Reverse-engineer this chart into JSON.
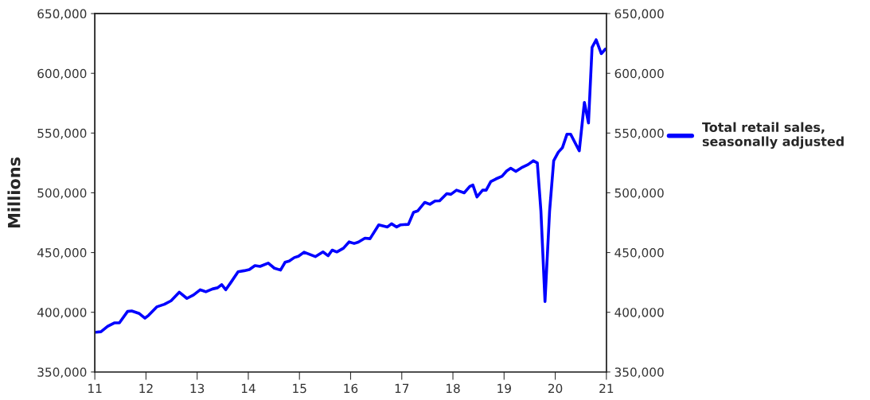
{
  "chart_data": {
    "type": "line",
    "ylabel": "Millions",
    "x": [
      2011.02,
      2011.12,
      2011.25,
      2011.38,
      2011.48,
      2011.64,
      2011.72,
      2011.87,
      2011.98,
      2012.05,
      2012.21,
      2012.36,
      2012.49,
      2012.65,
      2012.8,
      2012.93,
      2013.06,
      2013.17,
      2013.3,
      2013.4,
      2013.48,
      2013.56,
      2013.66,
      2013.8,
      2013.92,
      2014.02,
      2014.13,
      2014.23,
      2014.39,
      2014.51,
      2014.63,
      2014.72,
      2014.8,
      2014.9,
      2014.98,
      2015.09,
      2015.31,
      2015.46,
      2015.56,
      2015.64,
      2015.73,
      2015.86,
      2015.97,
      2016.07,
      2016.15,
      2016.28,
      2016.38,
      2016.55,
      2016.72,
      2016.8,
      2016.9,
      2016.98,
      2017.13,
      2017.23,
      2017.31,
      2017.45,
      2017.55,
      2017.65,
      2017.74,
      2017.88,
      2017.96,
      2018.07,
      2018.22,
      2018.33,
      2018.39,
      2018.47,
      2018.58,
      2018.65,
      2018.74,
      2018.84,
      2018.96,
      2019.05,
      2019.13,
      2019.23,
      2019.34,
      2019.47,
      2019.57,
      2019.65,
      2019.72,
      2019.8,
      2019.89,
      2019.97,
      2020.06,
      2020.14,
      2020.23,
      2020.3,
      2020.47,
      2020.57,
      2020.65,
      2020.72,
      2020.8,
      2020.9,
      2020.98
    ],
    "series": [
      {
        "name": "Total retail sales,\nseasonally adjusted",
        "color": "#0000ff",
        "values": [
          383300,
          383700,
          388200,
          391100,
          391100,
          400700,
          401100,
          398900,
          395100,
          397400,
          404500,
          406700,
          409600,
          416800,
          411600,
          414500,
          418800,
          417200,
          419500,
          420500,
          423200,
          418900,
          425000,
          433900,
          434800,
          435700,
          439100,
          438400,
          441100,
          436900,
          435300,
          441900,
          442900,
          445800,
          446900,
          450300,
          446600,
          450500,
          447300,
          452000,
          450500,
          453600,
          458900,
          457600,
          458700,
          462000,
          461600,
          473200,
          471400,
          474100,
          471400,
          473200,
          473600,
          483700,
          484800,
          492000,
          490400,
          493100,
          493300,
          499300,
          498700,
          502200,
          500000,
          505400,
          506500,
          496500,
          502200,
          502200,
          509400,
          511600,
          513900,
          518300,
          520600,
          517900,
          521000,
          523700,
          526800,
          525000,
          484800,
          409000,
          484800,
          526800,
          534000,
          537700,
          549100,
          549100,
          535100,
          575700,
          558500,
          621700,
          628100,
          616500,
          620300
        ]
      }
    ],
    "xlim": [
      2011,
      2021
    ],
    "xticks": [
      {
        "value": 2011,
        "label": "11"
      },
      {
        "value": 2012,
        "label": "12"
      },
      {
        "value": 2013,
        "label": "13"
      },
      {
        "value": 2014,
        "label": "14"
      },
      {
        "value": 2015,
        "label": "15"
      },
      {
        "value": 2016,
        "label": "16"
      },
      {
        "value": 2017,
        "label": "17"
      },
      {
        "value": 2018,
        "label": "18"
      },
      {
        "value": 2019,
        "label": "19"
      },
      {
        "value": 2020,
        "label": "20"
      },
      {
        "value": 2021,
        "label": "21"
      }
    ],
    "ylim": [
      350000,
      650000
    ],
    "yticks": [
      {
        "value": 350000,
        "label": "350,000"
      },
      {
        "value": 400000,
        "label": "400,000"
      },
      {
        "value": 450000,
        "label": "450,000"
      },
      {
        "value": 500000,
        "label": "500,000"
      },
      {
        "value": 550000,
        "label": "550,000"
      },
      {
        "value": 600000,
        "label": "600,000"
      },
      {
        "value": 650000,
        "label": "650,000"
      }
    ],
    "y2lim": [
      350000,
      650000
    ],
    "y2ticks": [
      {
        "value": 350000,
        "label": "350,000"
      },
      {
        "value": 400000,
        "label": "400,000"
      },
      {
        "value": 450000,
        "label": "450,000"
      },
      {
        "value": 500000,
        "label": "500,000"
      },
      {
        "value": 550000,
        "label": "550,000"
      },
      {
        "value": 600000,
        "label": "600,000"
      },
      {
        "value": 650000,
        "label": "650,000"
      }
    ],
    "legend": "right",
    "grid": false,
    "line_style": "solid",
    "marker": "none"
  }
}
